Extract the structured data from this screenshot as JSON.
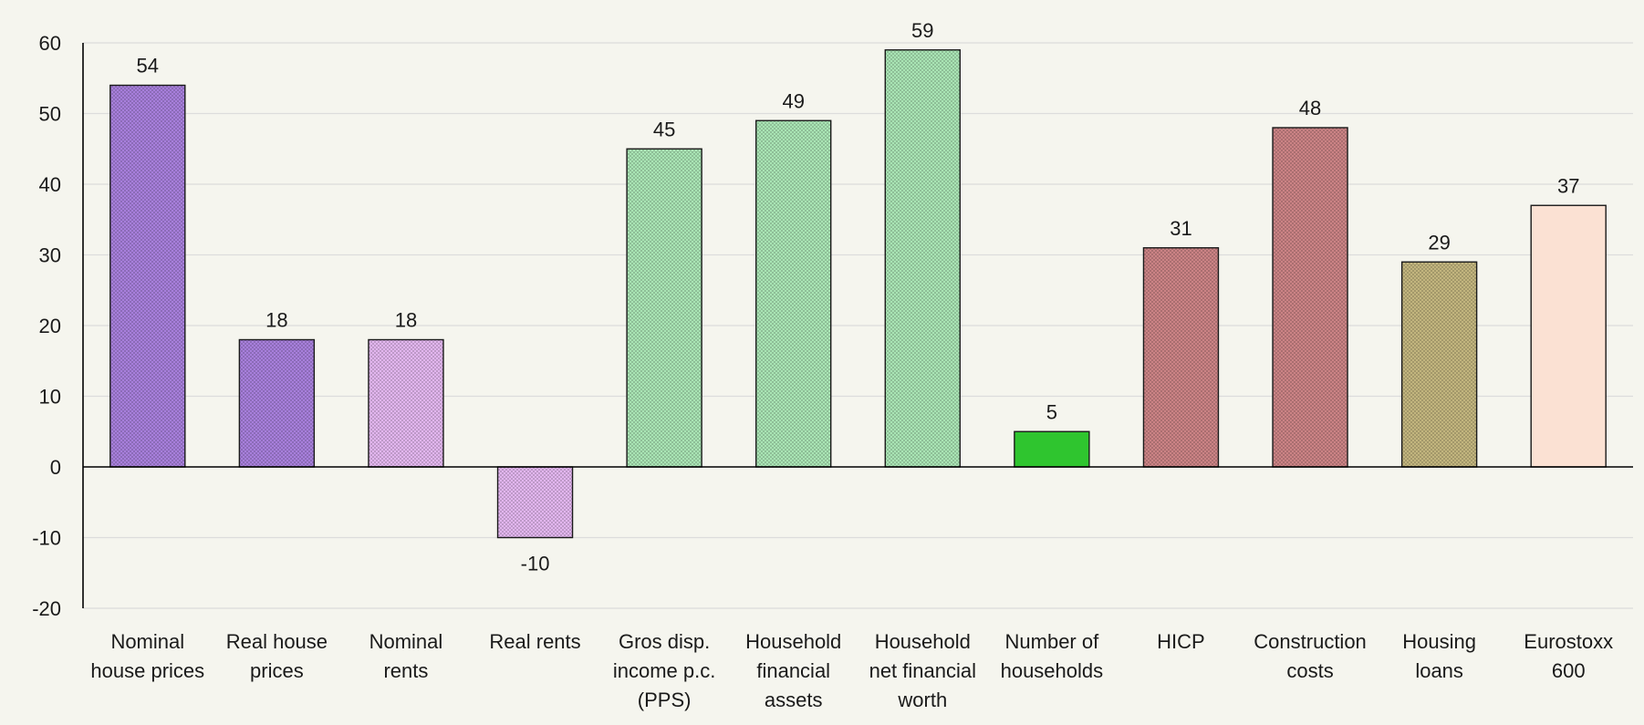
{
  "chart_data": {
    "type": "bar",
    "categories": [
      [
        "Nominal",
        "house prices"
      ],
      [
        "Real house",
        "prices"
      ],
      [
        "Nominal",
        "rents"
      ],
      [
        "Real rents"
      ],
      [
        "Gros disp.",
        "income p.c.",
        "(PPS)"
      ],
      [
        "Household",
        "financial",
        "assets"
      ],
      [
        "Household",
        "net financial",
        "worth"
      ],
      [
        "Number of",
        "households"
      ],
      [
        "HICP"
      ],
      [
        "Construction",
        "costs"
      ],
      [
        "Housing",
        "loans"
      ],
      [
        "Eurostoxx",
        "600"
      ]
    ],
    "values": [
      54,
      18,
      18,
      -10,
      45,
      49,
      59,
      5,
      31,
      48,
      29,
      37
    ],
    "value_labels": [
      "54",
      "18",
      "18",
      "-10",
      "45",
      "49",
      "59",
      "5",
      "31",
      "48",
      "29",
      "37"
    ],
    "colors": [
      "#a77fdb",
      "#a77fdb",
      "#e2b6ee",
      "#e2b6ee",
      "#a9e4b4",
      "#a9e4b4",
      "#a9e4b4",
      "#2fc52f",
      "#cb8385",
      "#cb8385",
      "#c2b57e",
      "#fbe1d3"
    ],
    "patterned": [
      true,
      true,
      true,
      true,
      true,
      true,
      true,
      false,
      true,
      true,
      true,
      false
    ],
    "ylim": [
      -20,
      60
    ],
    "yticks": [
      -20,
      -10,
      0,
      10,
      20,
      30,
      40,
      50,
      60
    ],
    "grid": true,
    "title": "",
    "xlabel": "",
    "ylabel": ""
  }
}
